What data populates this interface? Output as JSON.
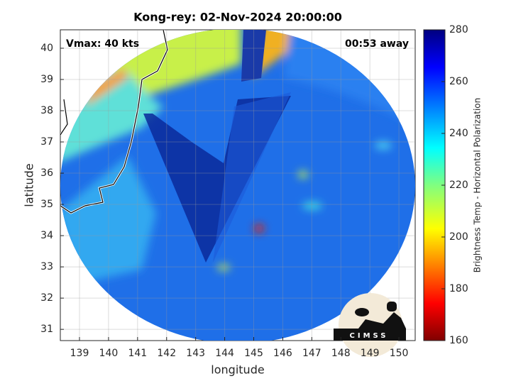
{
  "chart_data": {
    "type": "map",
    "title": "Kong-rey: 02-Nov-2024 20:00:00",
    "annotations": [
      "Vmax: 40 kts",
      "00:53 away"
    ],
    "xlabel": "longitude",
    "ylabel": "latitude",
    "xlim": [
      138.34,
      150.56
    ],
    "ylim": [
      30.64,
      40.59
    ],
    "xticks": [
      139,
      140,
      141,
      142,
      143,
      144,
      145,
      146,
      147,
      148,
      149,
      150
    ],
    "yticks": [
      31,
      32,
      33,
      34,
      35,
      36,
      37,
      38,
      39,
      40
    ],
    "grid": true,
    "colorbar": {
      "label": "Brightness Temp - Horizontal Polarization",
      "lim": [
        160,
        280
      ],
      "ticks": [
        160,
        180,
        200,
        220,
        240,
        260,
        280
      ]
    },
    "logo": "CIMSS"
  }
}
